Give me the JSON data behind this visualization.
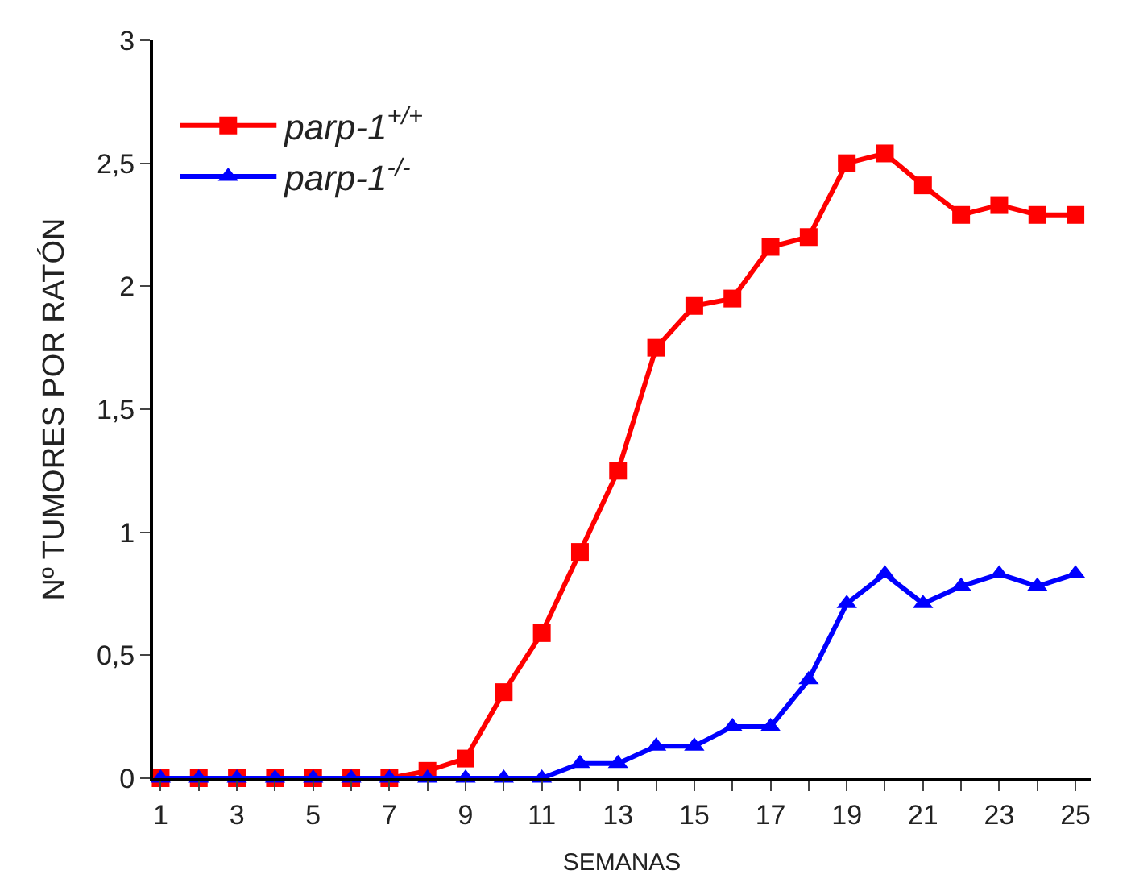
{
  "chart_data": {
    "type": "line",
    "xlabel": "SEMANAS",
    "ylabel": "Nº TUMORES POR RATÓN",
    "x": [
      1,
      2,
      3,
      4,
      5,
      6,
      7,
      8,
      9,
      10,
      11,
      12,
      13,
      14,
      15,
      16,
      17,
      18,
      19,
      20,
      21,
      22,
      23,
      24,
      25
    ],
    "series": [
      {
        "name": "parp-1$^{+/+}$",
        "color": "#ff0000",
        "marker": "square",
        "values": [
          0,
          0,
          0,
          0,
          0,
          0,
          0,
          0.03,
          0.08,
          0.35,
          0.59,
          0.92,
          1.25,
          1.75,
          1.92,
          1.95,
          2.16,
          2.2,
          2.5,
          2.54,
          2.41,
          2.29,
          2.33,
          2.29,
          2.29
        ]
      },
      {
        "name": "parp-1$^{-/-}$",
        "color": "#0000ff",
        "marker": "triangle",
        "values": [
          0,
          0,
          0,
          0,
          0,
          0,
          0,
          0,
          0,
          0,
          0,
          0.06,
          0.06,
          0.13,
          0.13,
          0.21,
          0.21,
          0.4,
          0.71,
          0.83,
          0.71,
          0.78,
          0.83,
          0.78,
          0.83
        ]
      }
    ],
    "xlim": [
      0.8,
      25.4
    ],
    "xticks": [
      1,
      {
        "value": 2,
        "label": null
      },
      3,
      {
        "value": 4,
        "label": null
      },
      5,
      {
        "value": 6,
        "label": null
      },
      7,
      {
        "value": 8,
        "label": null
      },
      9,
      {
        "value": 10,
        "label": null
      },
      11,
      {
        "value": 12,
        "label": null
      },
      13,
      {
        "value": 14,
        "label": null
      },
      15,
      {
        "value": 16,
        "label": null
      },
      17,
      {
        "value": 18,
        "label": null
      },
      19,
      {
        "value": 20,
        "label": null
      },
      21,
      {
        "value": 22,
        "label": null
      },
      23,
      {
        "value": 24,
        "label": null
      },
      25
    ],
    "ylim": [
      0,
      3
    ],
    "yticks": [
      0,
      {
        "value": 0.5,
        "label": "0,5"
      },
      1,
      {
        "value": 1.5,
        "label": "1,5"
      },
      2,
      {
        "value": 2.5,
        "label": "2,5"
      },
      3
    ],
    "legend": "top left",
    "line_style": "solid"
  }
}
